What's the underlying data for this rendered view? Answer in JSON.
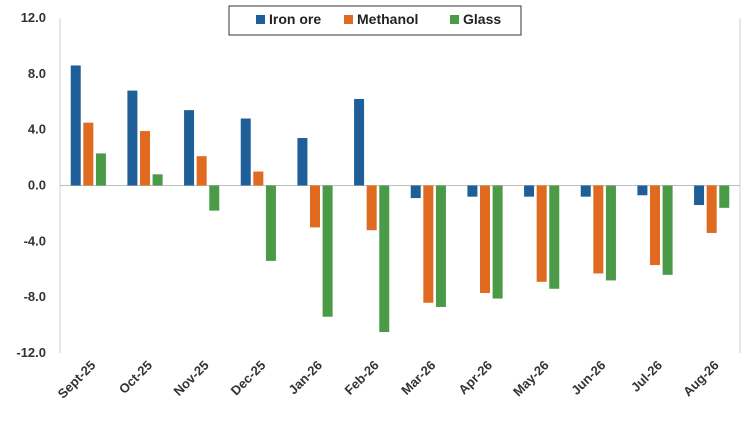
{
  "chart_data": {
    "type": "bar",
    "categories": [
      "Sept-25",
      "Oct-25",
      "Nov-25",
      "Dec-25",
      "Jan-26",
      "Feb-26",
      "Mar-26",
      "Apr-26",
      "May-26",
      "Jun-26",
      "Jul-26",
      "Aug-26"
    ],
    "series": [
      {
        "name": "Iron ore",
        "color": "#1f5f99",
        "values": [
          8.6,
          6.8,
          5.4,
          4.8,
          3.4,
          6.2,
          -0.9,
          -0.8,
          -0.8,
          -0.8,
          -0.7,
          -1.4
        ]
      },
      {
        "name": "Methanol",
        "color": "#e06a1f",
        "values": [
          4.5,
          3.9,
          2.1,
          1.0,
          -3.0,
          -3.2,
          -8.4,
          -7.7,
          -6.9,
          -6.3,
          -5.7,
          -3.4
        ]
      },
      {
        "name": "Glass",
        "color": "#4a9a48",
        "values": [
          2.3,
          0.8,
          -1.8,
          -5.4,
          -9.4,
          -10.5,
          -8.7,
          -8.1,
          -7.4,
          -6.8,
          -6.4,
          -1.6
        ]
      }
    ],
    "y_ticks": [
      "12.0",
      "8.0",
      "4.0",
      "0.0",
      "-4.0",
      "-8.0",
      "-12.0"
    ],
    "ylim": [
      -12,
      12
    ],
    "legend_position": "top-center",
    "grid": false
  }
}
